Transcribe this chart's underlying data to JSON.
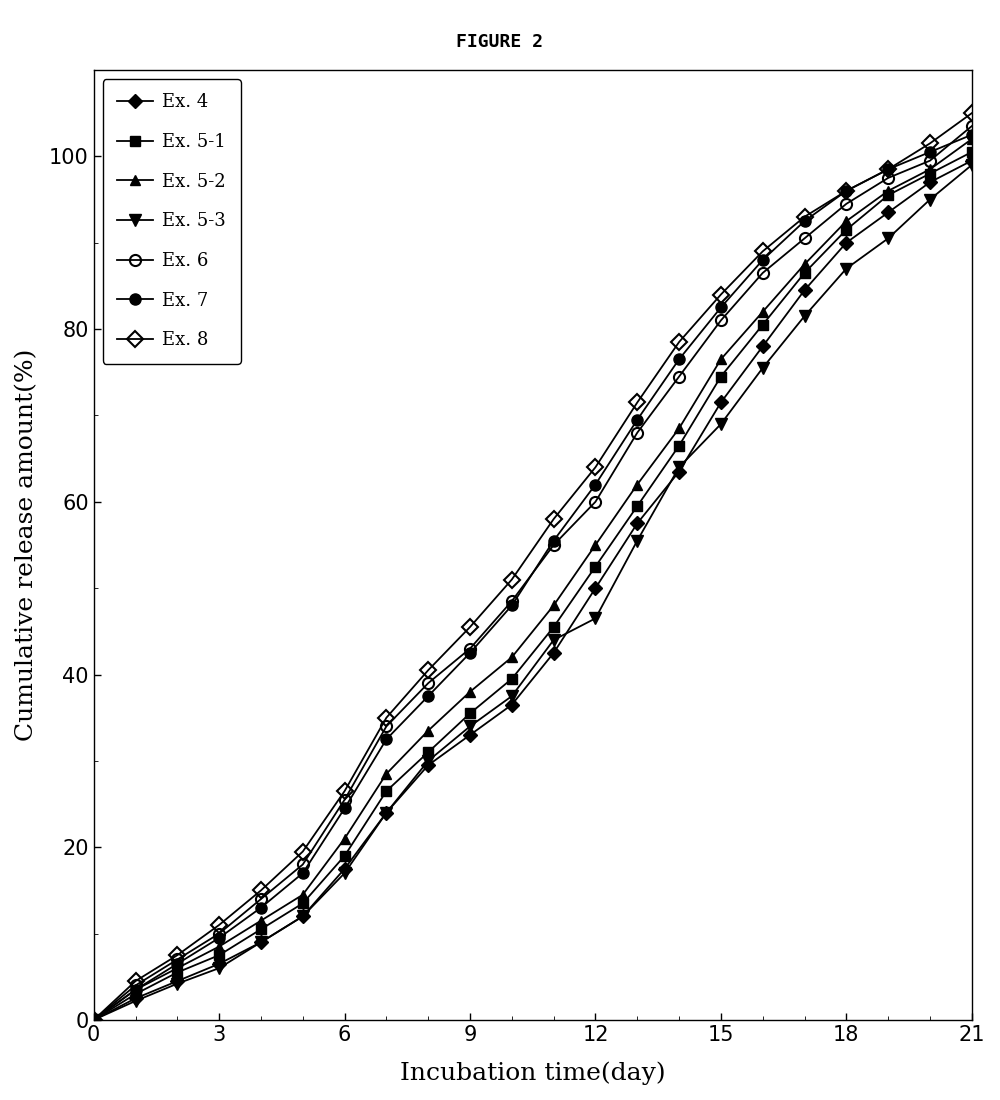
{
  "title": "FIGURE 2",
  "xlabel": "Incubation time(day)",
  "ylabel": "Cumulative release amount(%)",
  "xlim": [
    0,
    21
  ],
  "ylim": [
    0,
    110
  ],
  "xticks": [
    0,
    3,
    6,
    9,
    12,
    15,
    18,
    21
  ],
  "yticks": [
    0,
    20,
    40,
    60,
    80,
    100
  ],
  "series": [
    {
      "label": "Ex. 4",
      "marker": "D",
      "fillstyle": "full",
      "color": "#000000",
      "markersize": 7,
      "x": [
        0,
        1,
        2,
        3,
        4,
        5,
        6,
        7,
        8,
        9,
        10,
        11,
        12,
        13,
        14,
        15,
        16,
        17,
        18,
        19,
        20,
        21
      ],
      "y": [
        0,
        2.5,
        4.5,
        6.5,
        9.0,
        12.0,
        17.5,
        24.0,
        29.5,
        33.0,
        36.5,
        42.5,
        50.0,
        57.5,
        63.5,
        71.5,
        78.0,
        84.5,
        90.0,
        93.5,
        97.0,
        99.5
      ]
    },
    {
      "label": "Ex. 5-1",
      "marker": "s",
      "fillstyle": "full",
      "color": "#000000",
      "markersize": 7,
      "x": [
        0,
        1,
        2,
        3,
        4,
        5,
        6,
        7,
        8,
        9,
        10,
        11,
        12,
        13,
        14,
        15,
        16,
        17,
        18,
        19,
        20,
        21
      ],
      "y": [
        0,
        3.0,
        5.5,
        7.5,
        10.5,
        13.5,
        19.0,
        26.5,
        31.0,
        35.5,
        39.5,
        45.5,
        52.5,
        59.5,
        66.5,
        74.5,
        80.5,
        86.5,
        91.5,
        95.5,
        98.0,
        100.5
      ]
    },
    {
      "label": "Ex. 5-2",
      "marker": "^",
      "fillstyle": "full",
      "color": "#000000",
      "markersize": 7,
      "x": [
        0,
        1,
        2,
        3,
        4,
        5,
        6,
        7,
        8,
        9,
        10,
        11,
        12,
        13,
        14,
        15,
        16,
        17,
        18,
        19,
        20,
        21
      ],
      "y": [
        0,
        3.5,
        6.0,
        8.5,
        11.5,
        14.5,
        21.0,
        28.5,
        33.5,
        38.0,
        42.0,
        48.0,
        55.0,
        62.0,
        68.5,
        76.5,
        82.0,
        87.5,
        92.5,
        96.0,
        98.5,
        102.0
      ]
    },
    {
      "label": "Ex. 5-3",
      "marker": "v",
      "fillstyle": "full",
      "color": "#000000",
      "markersize": 8,
      "x": [
        0,
        1,
        2,
        3,
        4,
        5,
        6,
        7,
        8,
        9,
        10,
        11,
        12,
        13,
        14,
        15,
        16,
        17,
        18,
        19,
        20,
        21
      ],
      "y": [
        0,
        2.2,
        4.2,
        6.0,
        9.0,
        12.0,
        17.0,
        24.0,
        30.0,
        34.0,
        37.5,
        44.0,
        46.5,
        55.5,
        64.0,
        69.0,
        75.5,
        81.5,
        87.0,
        90.5,
        95.0,
        99.0
      ]
    },
    {
      "label": "Ex. 6",
      "marker": "o",
      "fillstyle": "none",
      "color": "#000000",
      "markersize": 8,
      "x": [
        0,
        1,
        2,
        3,
        4,
        5,
        6,
        7,
        8,
        9,
        10,
        11,
        12,
        13,
        14,
        15,
        16,
        17,
        18,
        19,
        20,
        21
      ],
      "y": [
        0,
        4.0,
        7.0,
        10.0,
        14.0,
        18.0,
        25.5,
        34.0,
        39.0,
        43.0,
        48.5,
        55.0,
        60.0,
        68.0,
        74.5,
        81.0,
        86.5,
        90.5,
        94.5,
        97.5,
        99.5,
        103.5
      ]
    },
    {
      "label": "Ex. 7",
      "marker": "o",
      "fillstyle": "full",
      "color": "#000000",
      "markersize": 8,
      "x": [
        0,
        1,
        2,
        3,
        4,
        5,
        6,
        7,
        8,
        9,
        10,
        11,
        12,
        13,
        14,
        15,
        16,
        17,
        18,
        19,
        20,
        21
      ],
      "y": [
        0,
        3.5,
        6.5,
        9.5,
        13.0,
        17.0,
        24.5,
        32.5,
        37.5,
        42.5,
        48.0,
        55.5,
        62.0,
        69.5,
        76.5,
        82.5,
        88.0,
        92.5,
        96.0,
        98.5,
        100.5,
        102.5
      ]
    },
    {
      "label": "Ex. 8",
      "marker": "D",
      "fillstyle": "none",
      "color": "#000000",
      "markersize": 8,
      "x": [
        0,
        1,
        2,
        3,
        4,
        5,
        6,
        7,
        8,
        9,
        10,
        11,
        12,
        13,
        14,
        15,
        16,
        17,
        18,
        19,
        20,
        21
      ],
      "y": [
        0,
        4.5,
        7.5,
        11.0,
        15.0,
        19.5,
        26.5,
        35.0,
        40.5,
        45.5,
        51.0,
        58.0,
        64.0,
        71.5,
        78.5,
        84.0,
        89.0,
        93.0,
        96.0,
        98.5,
        101.5,
        105.0
      ]
    }
  ],
  "figure_width": 10.0,
  "figure_height": 11.0,
  "dpi": 100,
  "title_fontsize": 13,
  "axis_label_fontsize": 18,
  "tick_fontsize": 15,
  "legend_fontsize": 13,
  "background_color": "#ffffff",
  "linewidth": 1.3
}
